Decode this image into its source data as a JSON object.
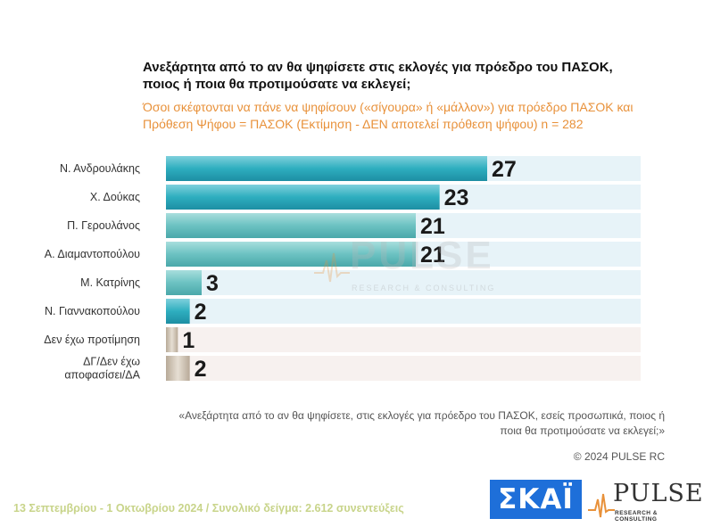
{
  "header": {
    "title": "Ανεξάρτητα από το αν θα ψηφίσετε στις εκλογές για πρόεδρο του ΠΑΣΟΚ, ποιος ή ποια θα προτιμούσατε να εκλεγεί;",
    "subtitle": "Όσοι σκέφτονται να πάνε να ψηφίσουν («σίγουρα» ή «μάλλον») για πρόεδρο ΠΑΣΟΚ και Πρόθεση Ψήφου = ΠΑΣΟΚ (Εκτίμηση - ΔΕΝ αποτελεί πρόθεση ψήφου)   n = 282"
  },
  "chart_data": {
    "type": "bar",
    "orientation": "horizontal",
    "categories": [
      "Ν. Ανδρουλάκης",
      "Χ. Δούκας",
      "Π. Γερουλάνος",
      "Α. Διαμαντοπούλου",
      "Μ. Κατρίνης",
      "Ν. Γιαννακοπούλου",
      "Δεν έχω προτίμηση",
      "ΔΓ/Δεν έχω αποφασίσει/ΔΑ"
    ],
    "values": [
      27,
      23,
      21,
      21,
      3,
      2,
      1,
      2
    ],
    "value_labels": [
      "27",
      "23",
      "21",
      "21",
      "3",
      "2",
      "1",
      "2"
    ],
    "colors": [
      "#2eaebf",
      "#2eaebf",
      "#6cc2c2",
      "#6cc2c2",
      "#6cc6cc",
      "#2aa2c2",
      "#c8bcae",
      "#c8bcae"
    ],
    "row_background": [
      "#e7f3f8",
      "#e7f3f8",
      "#e7f3f8",
      "#e7f3f8",
      "#e7f3f8",
      "#e7f3f8",
      "#f7f1ef",
      "#f7f1ef"
    ],
    "xlim": [
      0,
      40
    ],
    "grid": false,
    "legend": "none"
  },
  "watermark": {
    "word": "PULSE",
    "sub": "RESEARCH & CONSULTING"
  },
  "footnote": "«Ανεξάρτητα από το αν θα ψηφίσετε, στις εκλογές για πρόεδρο του ΠΑΣΟΚ, εσείς προσωπικά, ποιος ή ποια θα προτιμούσατε να εκλεγεί;»",
  "copyright": "© 2024 PULSE RC",
  "bottom_line": "13 Σεπτεμβρίου - 1 Οκτωβρίου 2024  /  Συνολικό δείγμα:  2.612 συνεντεύξεις",
  "logos": {
    "skai": "ΣΚΑΪ",
    "pulse_word": "PULSE",
    "pulse_sub": "RESEARCH & CONSULTING"
  }
}
